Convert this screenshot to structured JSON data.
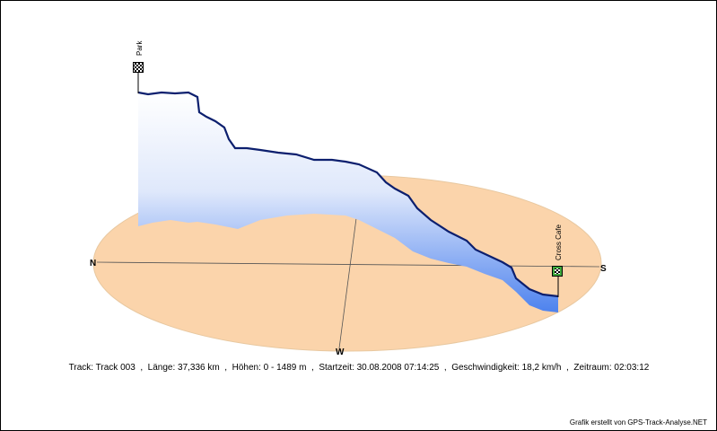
{
  "markers": [
    {
      "label": "Park"
    },
    {
      "label": "Cross Cafe"
    }
  ],
  "compass": {
    "north": "N",
    "south": "S",
    "west": "W"
  },
  "info": "Track: Track 003  ,  Länge: 37,336 km  ,  Höhen: 0 - 1489 m  ,  Startzeit: 30.08.2008 07:14:25  ,  Geschwindigkeit: 18,2 km/h  ,  Zeitraum: 02:03:12",
  "credit": "Grafik erstellt von GPS-Track-Analyse.NET"
}
